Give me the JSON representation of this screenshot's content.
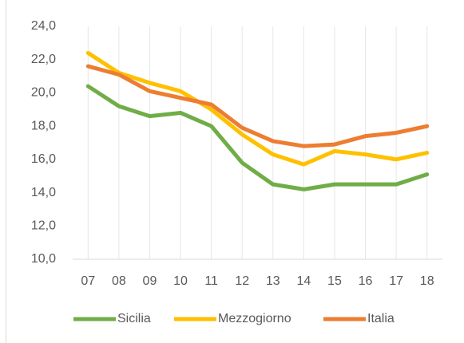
{
  "chart_data": {
    "type": "line",
    "categories": [
      "07",
      "08",
      "09",
      "10",
      "11",
      "12",
      "13",
      "14",
      "15",
      "16",
      "17",
      "18"
    ],
    "series": [
      {
        "name": "Sicilia",
        "color": "#70ad47",
        "values": [
          20.4,
          19.2,
          18.6,
          18.8,
          18.0,
          15.8,
          14.5,
          14.2,
          14.5,
          14.5,
          14.5,
          15.1
        ]
      },
      {
        "name": "Mezzogiorno",
        "color": "#ffc000",
        "values": [
          22.4,
          21.2,
          20.6,
          20.1,
          19.0,
          17.5,
          16.3,
          15.7,
          16.5,
          16.3,
          16.0,
          16.4
        ]
      },
      {
        "name": "Italia",
        "color": "#ed7d31",
        "values": [
          21.6,
          21.1,
          20.1,
          19.7,
          19.3,
          17.9,
          17.1,
          16.8,
          16.9,
          17.4,
          17.6,
          18.0
        ]
      }
    ],
    "ylim": [
      10,
      24
    ],
    "yticks": [
      {
        "value": 10,
        "label": "10,0"
      },
      {
        "value": 12,
        "label": "12,0"
      },
      {
        "value": 14,
        "label": "14,0"
      },
      {
        "value": 16,
        "label": "16,0"
      },
      {
        "value": 18,
        "label": "18,0"
      },
      {
        "value": 20,
        "label": "20,0"
      },
      {
        "value": 22,
        "label": "22,0"
      },
      {
        "value": 24,
        "label": "24,0"
      }
    ],
    "vertical_grid": true,
    "legend": "bottom"
  }
}
